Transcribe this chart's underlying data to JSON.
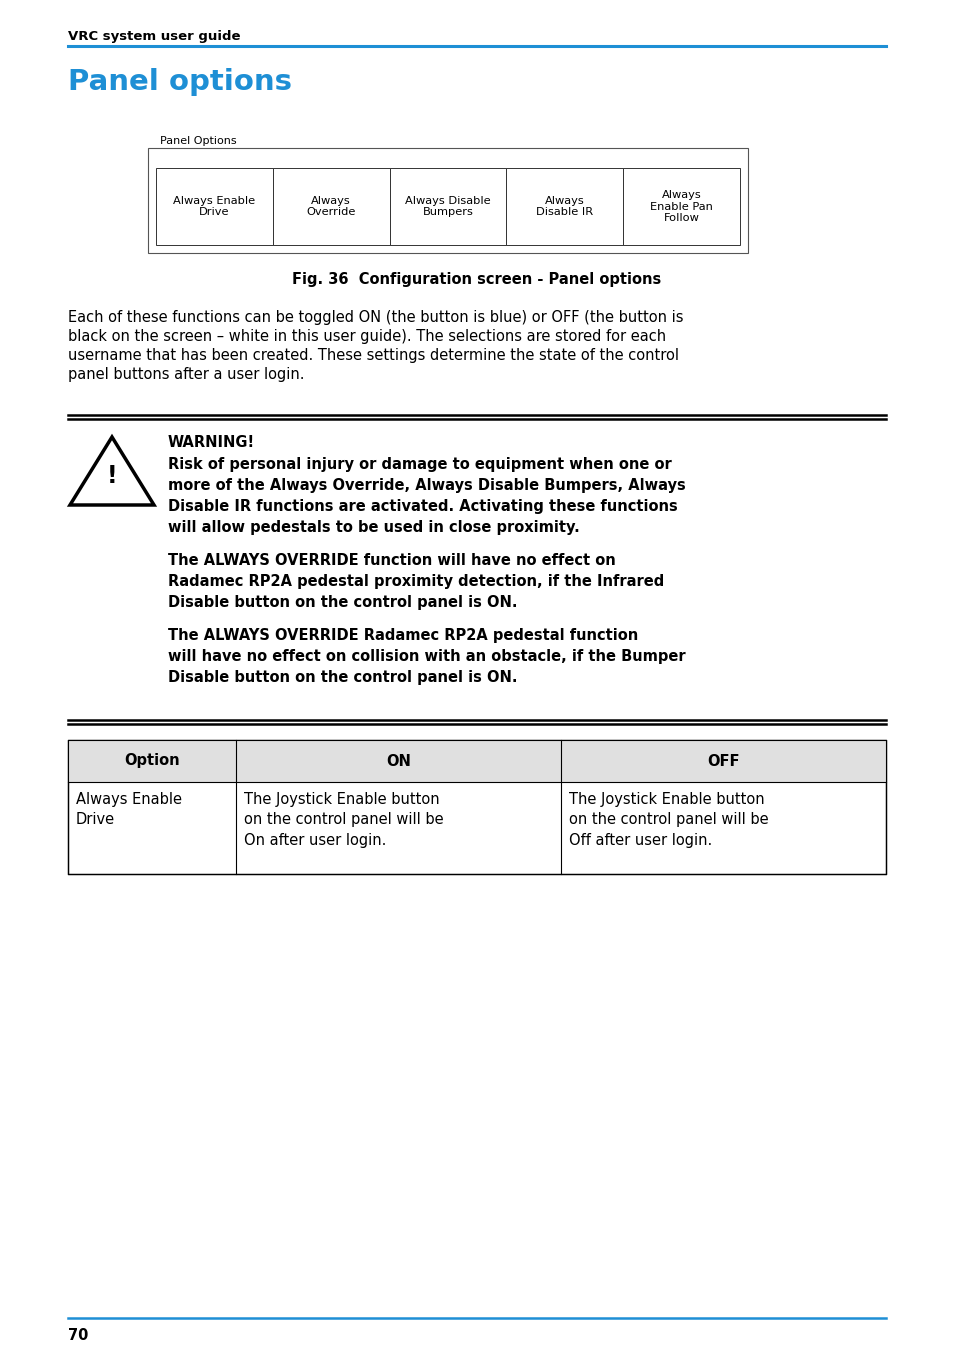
{
  "header_text": "VRC system user guide",
  "title": "Panel options",
  "title_color": "#1E8FD5",
  "blue_line_color": "#1E8FD5",
  "panel_options_label": "Panel Options",
  "panel_buttons": [
    "Always Enable\nDrive",
    "Always\nOverride",
    "Always Disable\nBumpers",
    "Always\nDisable IR",
    "Always\nEnable Pan\nFollow"
  ],
  "fig_caption": "Fig. 36  Configuration screen - Panel options",
  "body_text_lines": [
    "Each of these functions can be toggled ON (the button is blue) or OFF (the button is",
    "black on the screen – white in this user guide). The selections are stored for each",
    "username that has been created. These settings determine the state of the control",
    "panel buttons after a user login."
  ],
  "warning_title": "WARNING!",
  "warning_para1_lines": [
    "Risk of personal injury or damage to equipment when one or",
    "more of the Always Override, Always Disable Bumpers, Always",
    "Disable IR functions are activated. Activating these functions",
    "will allow pedestals to be used in close proximity."
  ],
  "warning_para2_lines": [
    "The ALWAYS OVERRIDE function will have no effect on",
    "Radamec RP2A pedestal proximity detection, if the Infrared",
    "Disable button on the control panel is ON."
  ],
  "warning_para3_lines": [
    "The ALWAYS OVERRIDE Radamec RP2A pedestal function",
    "will have no effect on collision with an obstacle, if the Bumper",
    "Disable button on the control panel is ON."
  ],
  "table_headers": [
    "Option",
    "ON",
    "OFF"
  ],
  "table_row1_col1": "Always Enable\nDrive",
  "table_row1_col2": "The Joystick Enable button\non the control panel will be\nOn after user login.",
  "table_row1_col3": "The Joystick Enable button\non the control panel will be\nOff after user login.",
  "footer_page": "70",
  "bg_color": "#ffffff"
}
